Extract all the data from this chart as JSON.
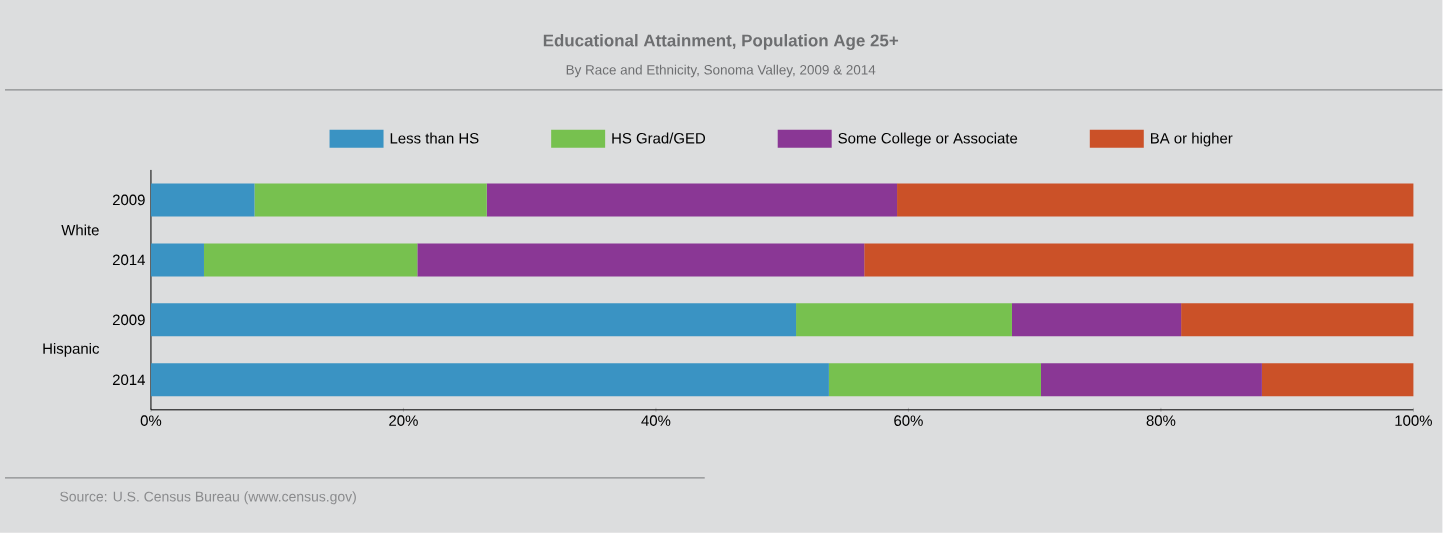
{
  "chart_data": {
    "type": "bar",
    "orientation": "horizontal",
    "stacked": true,
    "title": "Educational Attainment, Population Age 25+",
    "subtitle": "By Race and Ethnicity, Sonoma Valley, 2009 & 2014",
    "categories": [
      "2009",
      "2014",
      "2009",
      "2014"
    ],
    "series": [
      {
        "name": "Less than HS",
        "color": "#3a93c3",
        "values": [
          8.2,
          4.2,
          51.1,
          53.7
        ]
      },
      {
        "name": "HS Grad/GED",
        "color": "#77c14f",
        "values": [
          18.4,
          16.9,
          17.1,
          16.8
        ]
      },
      {
        "name": "Some College or Associate",
        "color": "#8a3795",
        "values": [
          32.5,
          35.4,
          13.4,
          17.5
        ]
      },
      {
        "name": "BA or higher",
        "color": "#cb5128",
        "values": [
          40.9,
          43.5,
          18.4,
          12.0
        ]
      }
    ],
    "xlim": [
      0,
      100
    ],
    "xticks": [
      {
        "value": 0,
        "label": "0%"
      },
      {
        "value": 20,
        "label": "20%"
      },
      {
        "value": 40,
        "label": "40%"
      },
      {
        "value": 60,
        "label": "60%"
      },
      {
        "value": 80,
        "label": "80%"
      },
      {
        "value": 100,
        "label": "100%"
      }
    ],
    "legend": "top",
    "annotations": [
      "White",
      "Hispanic",
      "Source: U.S. Census Bureau (www.census.gov)"
    ]
  }
}
